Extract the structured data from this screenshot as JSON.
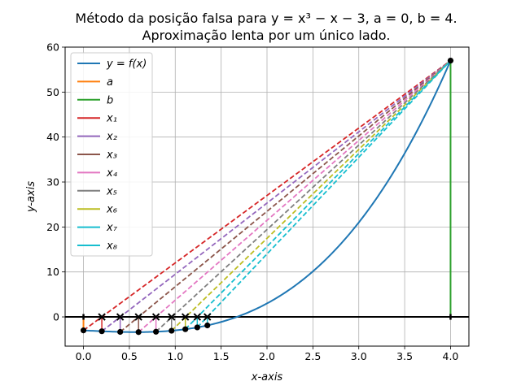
{
  "chart_data": {
    "type": "line",
    "title_line1": "Método da posição falsa para y = x³ − x − 3,  a = 0,  b = 4.",
    "title_line2": "Aproximação lenta por um único lado.",
    "xlabel": "x-axis",
    "ylabel": "y-axis",
    "xlim": [
      -0.2,
      4.2
    ],
    "ylim": [
      -6.5,
      60
    ],
    "xticks": [
      0.0,
      0.5,
      1.0,
      1.5,
      2.0,
      2.5,
      3.0,
      3.5,
      4.0
    ],
    "xtick_labels": [
      "0.0",
      "0.5",
      "1.0",
      "1.5",
      "2.0",
      "2.5",
      "3.0",
      "3.5",
      "4.0"
    ],
    "yticks": [
      0,
      10,
      20,
      30,
      40,
      50,
      60
    ],
    "ytick_labels": [
      "0",
      "10",
      "20",
      "30",
      "40",
      "50",
      "60"
    ],
    "grid": true,
    "legend_position": "top-left",
    "function": "x^3 - x - 3",
    "curve_domain": [
      0,
      4
    ],
    "a": 0,
    "b": 4,
    "fa": -3,
    "fb": 57,
    "iterates": [
      0.2,
      0.4,
      0.6,
      0.79,
      0.96,
      1.11,
      1.24,
      1.35
    ],
    "series_colors": {
      "curve": "#1f77b4",
      "a": "#ff7f0e",
      "b": "#2ca02c",
      "x1": "#d62728",
      "x2": "#9467bd",
      "x3": "#8c564b",
      "x4": "#e377c2",
      "x5": "#7f7f7f",
      "x6": "#bcbd22",
      "x7": "#17becf",
      "x8": "#17becf"
    },
    "legend": [
      {
        "label": "y = f(x)",
        "color": "#1f77b4"
      },
      {
        "label": "a",
        "color": "#ff7f0e"
      },
      {
        "label": "b",
        "color": "#2ca02c"
      },
      {
        "label": "x₁",
        "color": "#d62728"
      },
      {
        "label": "x₂",
        "color": "#9467bd"
      },
      {
        "label": "x₃",
        "color": "#8c564b"
      },
      {
        "label": "x₄",
        "color": "#e377c2"
      },
      {
        "label": "x₅",
        "color": "#7f7f7f"
      },
      {
        "label": "x₆",
        "color": "#bcbd22"
      },
      {
        "label": "x₇",
        "color": "#17becf"
      },
      {
        "label": "x₈",
        "color": "#17becf"
      }
    ]
  }
}
